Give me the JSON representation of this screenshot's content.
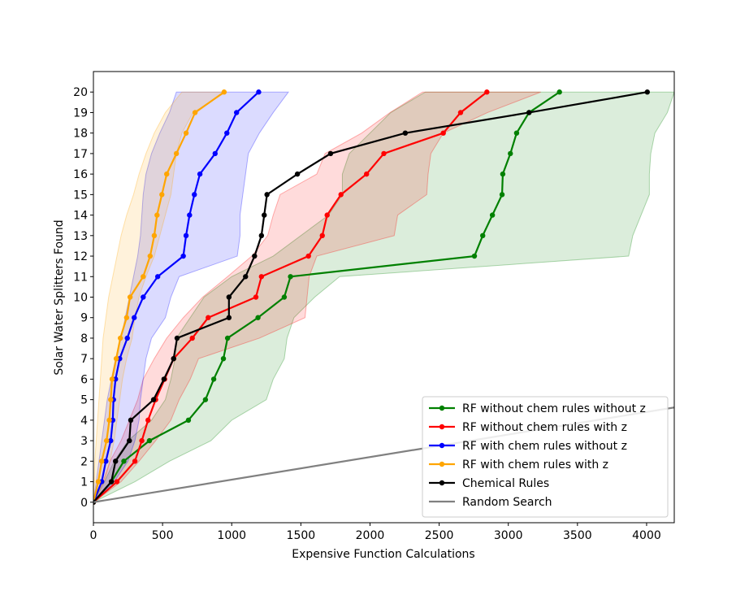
{
  "chart_data": {
    "type": "line",
    "xlabel": "Expensive Function Calculations",
    "ylabel": "Solar Water Splitters Found",
    "xlim": [
      0,
      4200
    ],
    "ylim": [
      -1,
      21
    ],
    "xticks": [
      0,
      500,
      1000,
      1500,
      2000,
      2500,
      3000,
      3500,
      4000
    ],
    "yticks": [
      0,
      1,
      2,
      3,
      4,
      5,
      6,
      7,
      8,
      9,
      10,
      11,
      12,
      13,
      14,
      15,
      16,
      17,
      18,
      19,
      20
    ],
    "grid": false,
    "legend": "lower right",
    "series": [
      {
        "name": "RF without chem rules without z",
        "color": "#008000",
        "markers": true,
        "x": [
          0,
          130,
          220,
          405,
          687,
          810,
          870,
          940,
          970,
          1190,
          1380,
          1425,
          2755,
          2815,
          2885,
          2955,
          2960,
          3015,
          3060,
          3150,
          3370
        ],
        "y": [
          0,
          1,
          2,
          3,
          4,
          5,
          6,
          7,
          8,
          9,
          10,
          11,
          12,
          13,
          14,
          15,
          16,
          17,
          18,
          19,
          20
        ],
        "band_lower": [
          0,
          80,
          150,
          250,
          420,
          520,
          560,
          590,
          600,
          700,
          800,
          1000,
          1300,
          1500,
          1700,
          1800,
          1800,
          1850,
          2000,
          2150,
          2400
        ],
        "band_upper": [
          0,
          300,
          550,
          850,
          1000,
          1250,
          1300,
          1380,
          1400,
          1450,
          1600,
          1780,
          3870,
          3900,
          3960,
          4020,
          4020,
          4030,
          4060,
          4150,
          4200
        ]
      },
      {
        "name": "RF without chem rules with z",
        "color": "#ff0000",
        "markers": true,
        "x": [
          0,
          170,
          300,
          350,
          395,
          450,
          515,
          580,
          715,
          830,
          1175,
          1215,
          1555,
          1655,
          1690,
          1790,
          1975,
          2100,
          2530,
          2655,
          2845
        ],
        "y": [
          0,
          1,
          2,
          3,
          4,
          5,
          6,
          7,
          8,
          9,
          10,
          11,
          12,
          13,
          14,
          15,
          16,
          17,
          18,
          19,
          20
        ],
        "band_lower": [
          0,
          70,
          120,
          200,
          260,
          320,
          360,
          440,
          530,
          650,
          790,
          970,
          1145,
          1260,
          1300,
          1350,
          1615,
          1675,
          1940,
          2145,
          2380
        ],
        "band_upper": [
          0,
          200,
          330,
          450,
          560,
          620,
          700,
          760,
          1200,
          1530,
          1545,
          1560,
          1615,
          2175,
          2200,
          2410,
          2420,
          2440,
          2530,
          2850,
          3235
        ]
      },
      {
        "name": "RF with chem rules without z",
        "color": "#0000ff",
        "markers": true,
        "x": [
          0,
          60,
          90,
          125,
          140,
          145,
          160,
          190,
          245,
          295,
          360,
          465,
          650,
          670,
          695,
          730,
          770,
          880,
          965,
          1035,
          1195
        ],
        "y": [
          0,
          1,
          2,
          3,
          4,
          5,
          6,
          7,
          8,
          9,
          10,
          11,
          12,
          13,
          14,
          15,
          16,
          17,
          18,
          19,
          20
        ],
        "band_lower": [
          0,
          20,
          40,
          60,
          80,
          100,
          130,
          160,
          200,
          230,
          260,
          290,
          320,
          340,
          350,
          360,
          380,
          420,
          480,
          550,
          600
        ],
        "band_upper": [
          0,
          150,
          250,
          300,
          330,
          340,
          360,
          380,
          420,
          520,
          560,
          620,
          1040,
          1060,
          1060,
          1080,
          1100,
          1120,
          1200,
          1300,
          1410
        ]
      },
      {
        "name": "RF with chem rules with z",
        "color": "#ffa500",
        "markers": true,
        "x": [
          0,
          35,
          60,
          95,
          115,
          125,
          135,
          165,
          195,
          240,
          265,
          360,
          410,
          440,
          460,
          495,
          530,
          600,
          670,
          735,
          945
        ],
        "y": [
          0,
          1,
          2,
          3,
          4,
          5,
          6,
          7,
          8,
          9,
          10,
          11,
          12,
          13,
          14,
          15,
          16,
          17,
          18,
          19,
          20
        ],
        "band_lower": [
          0,
          5,
          10,
          20,
          30,
          40,
          50,
          60,
          70,
          90,
          110,
          140,
          170,
          200,
          240,
          290,
          330,
          380,
          440,
          520,
          640
        ],
        "band_upper": [
          0,
          80,
          120,
          150,
          170,
          190,
          210,
          240,
          280,
          300,
          330,
          380,
          440,
          480,
          520,
          560,
          580,
          600,
          640,
          720,
          960
        ]
      },
      {
        "name": "Chemical Rules",
        "color": "#000000",
        "markers": true,
        "x": [
          0,
          130,
          160,
          260,
          270,
          435,
          510,
          580,
          605,
          980,
          980,
          1100,
          1165,
          1215,
          1235,
          1255,
          1475,
          1715,
          2255,
          3150,
          4005
        ],
        "y": [
          0,
          1,
          2,
          3,
          4,
          5,
          6,
          7,
          8,
          9,
          10,
          11,
          12,
          13,
          14,
          15,
          16,
          17,
          18,
          19,
          20
        ]
      },
      {
        "name": "Random Search",
        "color": "#808080",
        "markers": false,
        "x": [
          0,
          4200
        ],
        "y": [
          0,
          4.62
        ]
      }
    ]
  }
}
